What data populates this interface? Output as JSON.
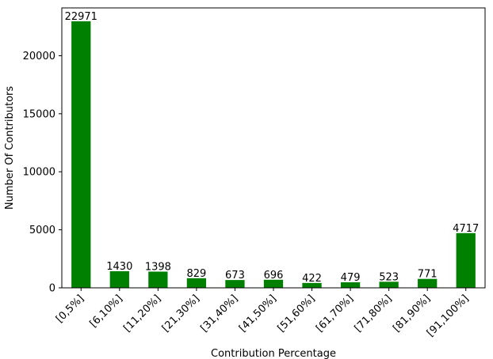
{
  "chart_data": {
    "type": "bar",
    "title": "",
    "xlabel": "Contribution Percentage",
    "ylabel": "Number Of Contributors",
    "categories": [
      "[0,5%]",
      "[6,10%]",
      "[11,20%]",
      "[21,30%]",
      "[31,40%]",
      "[41,50%]",
      "[51,60%]",
      "[61,70%]",
      "[71,80%]",
      "[81,90%]",
      "[91,100%]"
    ],
    "values": [
      22971,
      1430,
      1398,
      829,
      673,
      696,
      422,
      479,
      523,
      771,
      4717
    ],
    "data_labels": [
      "22971",
      "1430",
      "1398",
      "829",
      "673",
      "696",
      "422",
      "479",
      "523",
      "771",
      "4717"
    ],
    "ylim": [
      0,
      24119.55
    ],
    "yticks": [
      0,
      5000,
      10000,
      15000,
      20000
    ],
    "ytick_labels": [
      "0",
      "5000",
      "10000",
      "15000",
      "20000"
    ],
    "grid": false,
    "legend": "none",
    "bar_color": "#008000",
    "x_tick_rotation_deg": 45
  }
}
